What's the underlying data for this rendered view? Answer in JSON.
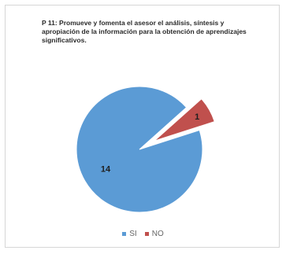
{
  "chart_data": {
    "type": "pie",
    "title": "P 11: Promueve y fomenta el asesor el análisis, síntesis y apropiación de la información para la obtención de aprendizajes significativos.",
    "categories": [
      "SI",
      "NO"
    ],
    "values": [
      14,
      1
    ],
    "colors": [
      "#5B9BD5",
      "#C0504D"
    ],
    "exploded": [
      "NO"
    ],
    "legend_position": "bottom",
    "data_labels": true
  }
}
